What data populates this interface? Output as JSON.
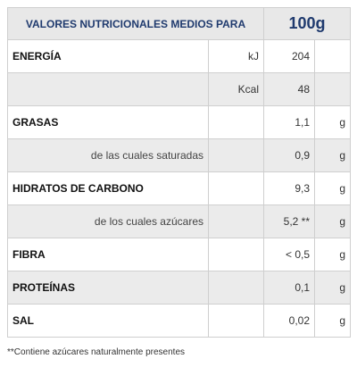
{
  "header": {
    "title": "VALORES NUTRICIONALES MEDIOS PARA",
    "amount": "100g"
  },
  "rows": [
    {
      "label": "ENERGÍA",
      "unit": "kJ",
      "value": 204
    },
    {
      "unit": "Kcal",
      "value": 48
    },
    {
      "label": "GRASAS",
      "value": "1,1",
      "suffix": "g"
    },
    {
      "label": "de las cuales saturadas",
      "value": "0,9",
      "suffix": "g"
    },
    {
      "label": "HIDRATOS DE CARBONO",
      "value": "9,3",
      "suffix": "g"
    },
    {
      "label": "de los cuales azúcares",
      "value": "5,2 **",
      "suffix": "g"
    },
    {
      "label": "FIBRA",
      "value": "< 0,5",
      "suffix": "g"
    },
    {
      "label": "PROTEÍNAS",
      "value": "0,1",
      "suffix": "g"
    },
    {
      "label": "SAL",
      "value": "0,02",
      "suffix": "g"
    }
  ],
  "footnote": "**Contiene azúcares naturalmente presentes"
}
